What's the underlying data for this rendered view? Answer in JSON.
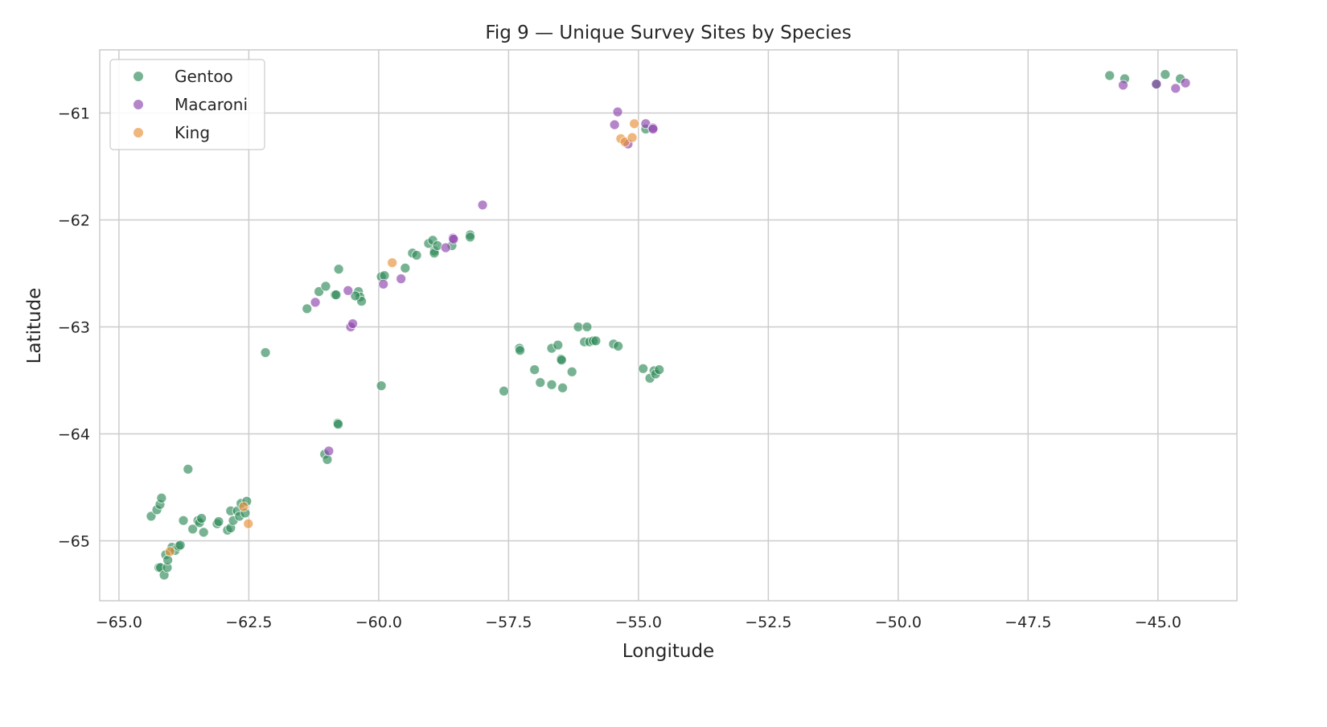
{
  "chart_data": {
    "type": "scatter",
    "title": "Fig 9 — Unique Survey Sites by Species",
    "xlabel": "Longitude",
    "ylabel": "Latitude",
    "xlim": [
      -65.37,
      -43.48
    ],
    "ylim": [
      -65.56,
      -60.41
    ],
    "xticks": [
      -65.0,
      -62.5,
      -60.0,
      -57.5,
      -55.0,
      -52.5,
      -50.0,
      -47.5,
      -45.0
    ],
    "xtick_labels": [
      "−65.0",
      "−62.5",
      "−60.0",
      "−57.5",
      "−55.0",
      "−52.5",
      "−50.0",
      "−47.5",
      "−45.0"
    ],
    "yticks": [
      -61,
      -62,
      -63,
      -64,
      -65
    ],
    "ytick_labels": [
      "−61",
      "−62",
      "−63",
      "−64",
      "−65"
    ],
    "grid": true,
    "legend_position": "top-left",
    "series": [
      {
        "name": "Gentoo",
        "color": "#2e8b57",
        "points": [
          [
            -64.38,
            -64.77
          ],
          [
            -64.27,
            -64.71
          ],
          [
            -64.21,
            -64.66
          ],
          [
            -64.18,
            -64.6
          ],
          [
            -63.67,
            -64.33
          ],
          [
            -63.76,
            -64.81
          ],
          [
            -63.58,
            -64.89
          ],
          [
            -63.48,
            -64.81
          ],
          [
            -63.45,
            -64.83
          ],
          [
            -63.41,
            -64.79
          ],
          [
            -63.37,
            -64.92
          ],
          [
            -63.11,
            -64.84
          ],
          [
            -63.08,
            -64.82
          ],
          [
            -62.91,
            -64.9
          ],
          [
            -62.85,
            -64.88
          ],
          [
            -62.85,
            -64.72
          ],
          [
            -62.8,
            -64.81
          ],
          [
            -62.72,
            -64.72
          ],
          [
            -62.68,
            -64.77
          ],
          [
            -62.65,
            -64.65
          ],
          [
            -62.57,
            -64.74
          ],
          [
            -62.54,
            -64.63
          ],
          [
            -64.23,
            -65.25
          ],
          [
            -64.2,
            -65.25
          ],
          [
            -64.13,
            -65.32
          ],
          [
            -64.07,
            -65.25
          ],
          [
            -64.1,
            -65.13
          ],
          [
            -64.06,
            -65.18
          ],
          [
            -63.98,
            -65.06
          ],
          [
            -63.92,
            -65.09
          ],
          [
            -63.85,
            -65.05
          ],
          [
            -63.82,
            -65.04
          ],
          [
            -62.18,
            -63.24
          ],
          [
            -61.38,
            -62.83
          ],
          [
            -61.15,
            -62.67
          ],
          [
            -61.02,
            -62.62
          ],
          [
            -60.84,
            -62.7
          ],
          [
            -60.82,
            -62.7
          ],
          [
            -60.77,
            -62.46
          ],
          [
            -60.39,
            -62.67
          ],
          [
            -60.36,
            -62.72
          ],
          [
            -60.33,
            -62.76
          ],
          [
            -60.45,
            -62.71
          ],
          [
            -59.95,
            -62.53
          ],
          [
            -59.89,
            -62.52
          ],
          [
            -59.49,
            -62.45
          ],
          [
            -59.35,
            -62.31
          ],
          [
            -59.27,
            -62.33
          ],
          [
            -59.04,
            -62.22
          ],
          [
            -58.96,
            -62.19
          ],
          [
            -58.93,
            -62.29
          ],
          [
            -58.93,
            -62.31
          ],
          [
            -58.87,
            -62.24
          ],
          [
            -58.59,
            -62.24
          ],
          [
            -58.24,
            -62.14
          ],
          [
            -58.24,
            -62.16
          ],
          [
            -59.95,
            -63.55
          ],
          [
            -60.79,
            -63.9
          ],
          [
            -60.78,
            -63.91
          ],
          [
            -61.04,
            -64.19
          ],
          [
            -60.99,
            -64.24
          ],
          [
            -57.59,
            -63.6
          ],
          [
            -57.29,
            -63.2
          ],
          [
            -57.28,
            -63.22
          ],
          [
            -57.0,
            -63.4
          ],
          [
            -56.89,
            -63.52
          ],
          [
            -56.67,
            -63.54
          ],
          [
            -56.67,
            -63.2
          ],
          [
            -56.55,
            -63.17
          ],
          [
            -56.49,
            -63.3
          ],
          [
            -56.48,
            -63.31
          ],
          [
            -56.46,
            -63.57
          ],
          [
            -56.28,
            -63.42
          ],
          [
            -56.16,
            -63.0
          ],
          [
            -56.04,
            -63.14
          ],
          [
            -55.99,
            -63.0
          ],
          [
            -55.94,
            -63.14
          ],
          [
            -55.87,
            -63.13
          ],
          [
            -55.82,
            -63.13
          ],
          [
            -55.48,
            -63.16
          ],
          [
            -55.39,
            -63.18
          ],
          [
            -54.91,
            -63.39
          ],
          [
            -54.78,
            -63.48
          ],
          [
            -54.7,
            -63.41
          ],
          [
            -54.67,
            -63.44
          ],
          [
            -54.6,
            -63.4
          ],
          [
            -54.86,
            -61.15
          ],
          [
            -45.93,
            -60.65
          ],
          [
            -45.64,
            -60.68
          ],
          [
            -44.86,
            -60.64
          ],
          [
            -44.57,
            -60.68
          ],
          [
            -45.03,
            -60.73
          ]
        ]
      },
      {
        "name": "Macaroni",
        "color": "#8e44ad",
        "points": [
          [
            -61.22,
            -62.77
          ],
          [
            -60.59,
            -62.66
          ],
          [
            -60.54,
            -63.0
          ],
          [
            -60.5,
            -62.97
          ],
          [
            -59.91,
            -62.6
          ],
          [
            -59.57,
            -62.55
          ],
          [
            -58.71,
            -62.26
          ],
          [
            -58.57,
            -62.17
          ],
          [
            -58.56,
            -62.18
          ],
          [
            -58.0,
            -61.86
          ],
          [
            -60.96,
            -64.16
          ],
          [
            -55.4,
            -60.99
          ],
          [
            -55.46,
            -61.11
          ],
          [
            -54.86,
            -61.1
          ],
          [
            -54.72,
            -61.14
          ],
          [
            -54.72,
            -61.15
          ],
          [
            -55.2,
            -61.29
          ],
          [
            -45.67,
            -60.74
          ],
          [
            -45.03,
            -60.73
          ],
          [
            -44.66,
            -60.77
          ],
          [
            -44.47,
            -60.72
          ]
        ]
      },
      {
        "name": "King",
        "color": "#e69138",
        "points": [
          [
            -62.6,
            -64.68
          ],
          [
            -62.51,
            -64.84
          ],
          [
            -64.02,
            -65.1
          ],
          [
            -59.74,
            -62.4
          ],
          [
            -55.08,
            -61.1
          ],
          [
            -55.34,
            -61.24
          ],
          [
            -55.26,
            -61.27
          ],
          [
            -55.12,
            -61.23
          ]
        ]
      }
    ]
  }
}
